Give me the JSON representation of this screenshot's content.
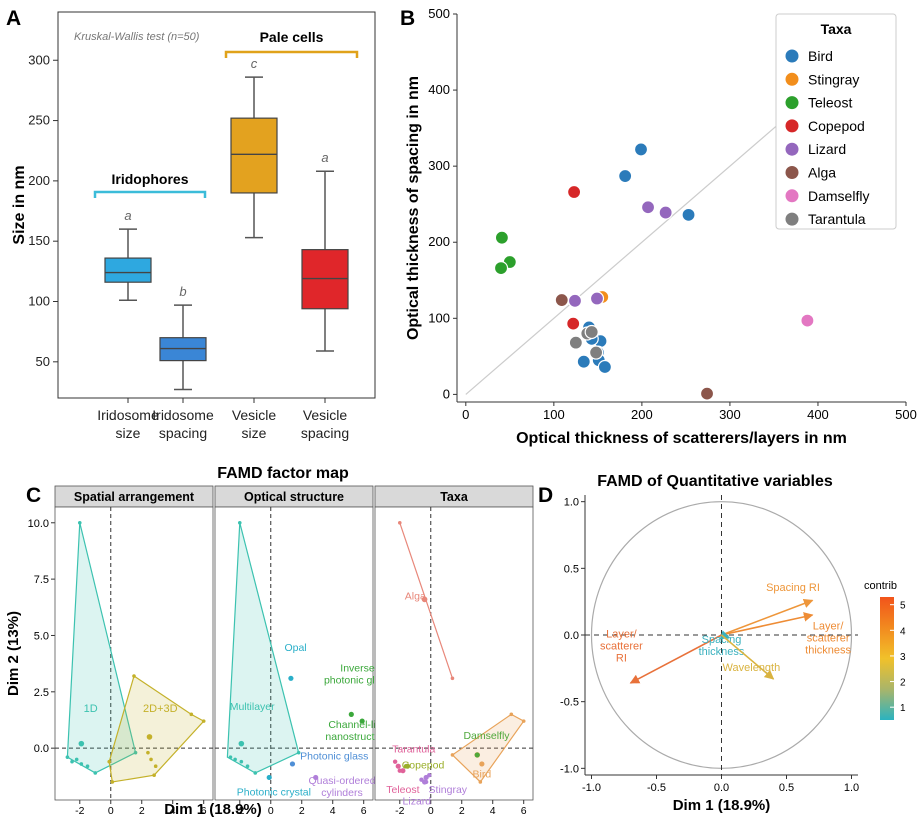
{
  "panel_letters": {
    "a": "A",
    "b": "B",
    "c": "C",
    "d": "D"
  },
  "chart_data": [
    {
      "id": "A",
      "type": "box",
      "ylabel": "Size in nm",
      "ylim": [
        20,
        340
      ],
      "yticks": [
        50,
        100,
        150,
        200,
        250,
        300
      ],
      "annotation": "Kruskal-Wallis test (n=50)",
      "groups": [
        {
          "label": "Iridophores",
          "members": [
            0,
            1
          ],
          "color": "#3BBCD9"
        },
        {
          "label": "Pale cells",
          "members": [
            2,
            3
          ],
          "color": "#E0A21A"
        }
      ],
      "boxes": [
        {
          "label": [
            "Iridosome",
            "size"
          ],
          "min": 101,
          "q1": 116,
          "median": 124,
          "q3": 136,
          "max": 160,
          "letter": "a",
          "color": "#2EA8E0"
        },
        {
          "label": [
            "Iridosome",
            "spacing"
          ],
          "min": 27,
          "q1": 51,
          "median": 61,
          "q3": 70,
          "max": 97,
          "letter": "b",
          "color": "#3A86D6"
        },
        {
          "label": [
            "Vesicle",
            "size"
          ],
          "min": 153,
          "q1": 190,
          "median": 222,
          "q3": 252,
          "max": 286,
          "letter": "c",
          "color": "#E3A21F"
        },
        {
          "label": [
            "Vesicle",
            "spacing"
          ],
          "min": 59,
          "q1": 94,
          "median": 119,
          "q3": 143,
          "max": 208,
          "letter": "a",
          "color": "#E0262A"
        }
      ]
    },
    {
      "id": "B",
      "type": "scatter",
      "xlabel": "Optical thickness of scatterers/layers in nm",
      "ylabel": "Optical thickness of spacing in nm",
      "xlim": [
        -10,
        500
      ],
      "ylim": [
        -10,
        500
      ],
      "xticks": [
        0,
        100,
        200,
        300,
        400,
        500
      ],
      "yticks": [
        0,
        100,
        200,
        300,
        400,
        500
      ],
      "legend_title": "Taxa",
      "legend_position": "top-right",
      "diagonal": true,
      "series": [
        {
          "name": "Bird",
          "color": "#2B7BBA",
          "points": [
            [
              199,
              322
            ],
            [
              181,
              287
            ],
            [
              253,
              236
            ],
            [
              140,
              88
            ],
            [
              153,
              70
            ],
            [
              143,
              73
            ],
            [
              150,
              55
            ],
            [
              151,
              45
            ],
            [
              134,
              43
            ],
            [
              158,
              36
            ]
          ]
        },
        {
          "name": "Stingray",
          "color": "#F28E1C",
          "points": [
            [
              155,
              128
            ]
          ]
        },
        {
          "name": "Teleost",
          "color": "#2CA02C",
          "points": [
            [
              41,
              206
            ],
            [
              50,
              174
            ],
            [
              40,
              166
            ]
          ]
        },
        {
          "name": "Copepod",
          "color": "#D62728",
          "points": [
            [
              123,
              266
            ],
            [
              122,
              93
            ]
          ]
        },
        {
          "name": "Lizard",
          "color": "#9467BD",
          "points": [
            [
              207,
              246
            ],
            [
              227,
              239
            ],
            [
              124,
              123
            ],
            [
              149,
              126
            ]
          ]
        },
        {
          "name": "Alga",
          "color": "#8C564B",
          "points": [
            [
              109,
              124
            ],
            [
              274,
              1
            ]
          ]
        },
        {
          "name": "Damselfly",
          "color": "#E377C2",
          "points": [
            [
              388,
              97
            ]
          ]
        },
        {
          "name": "Tarantula",
          "color": "#7F7F7F",
          "points": [
            [
              138,
              80
            ],
            [
              143,
              82
            ],
            [
              125,
              68
            ],
            [
              148,
              55
            ]
          ]
        }
      ]
    },
    {
      "id": "C",
      "type": "scatter",
      "title": "FAMD factor map",
      "xlabel": "Dim 1 (18.9%)",
      "ylabel": "Dim 2 (13%)",
      "xlim": [
        -3.6,
        6.6
      ],
      "ylim": [
        -2.3,
        10.7
      ],
      "xticks": [
        -2,
        0,
        2,
        4,
        6
      ],
      "yticks": [
        0,
        2.5,
        5,
        7.5,
        10
      ],
      "ytick_labels": [
        "0.0",
        "2.5",
        "5.0",
        "7.5",
        "10.0"
      ],
      "facets": [
        {
          "title": "Spatial arrangement",
          "groups": [
            {
              "name": "1D",
              "color": "#3CC2B0",
              "hull": [
                [
                  -2.0,
                  10.0
                ],
                [
                  1.6,
                  -0.2
                ],
                [
                  -1.0,
                  -1.1
                ],
                [
                  -2.8,
                  -0.4
                ]
              ],
              "centroid": [
                -1.9,
                0.2
              ],
              "label_pos": [
                -1.3,
                1.6
              ],
              "points": [
                [
                  -2.0,
                  10.0
                ],
                [
                  -2.8,
                  -0.4
                ],
                [
                  -2.5,
                  -0.6
                ],
                [
                  -2.2,
                  -0.5
                ],
                [
                  -1.9,
                  -0.7
                ],
                [
                  -1.5,
                  -0.8
                ],
                [
                  -1.0,
                  -1.1
                ],
                [
                  1.6,
                  -0.2
                ]
              ]
            },
            {
              "name": "2D+3D",
              "color": "#C4B12A",
              "hull": [
                [
                  1.5,
                  3.2
                ],
                [
                  5.2,
                  1.5
                ],
                [
                  6.0,
                  1.2
                ],
                [
                  2.8,
                  -1.2
                ],
                [
                  0.1,
                  -1.5
                ],
                [
                  -0.1,
                  -0.6
                ]
              ],
              "centroid": [
                2.5,
                0.5
              ],
              "label_pos": [
                3.2,
                1.6
              ],
              "points": [
                [
                  1.5,
                  3.2
                ],
                [
                  5.2,
                  1.5
                ],
                [
                  6.0,
                  1.2
                ],
                [
                  2.4,
                  -0.2
                ],
                [
                  2.6,
                  -0.5
                ],
                [
                  2.9,
                  -0.8
                ],
                [
                  2.8,
                  -1.2
                ],
                [
                  0.1,
                  -1.5
                ],
                [
                  -0.1,
                  -0.6
                ]
              ]
            }
          ]
        },
        {
          "title": "Optical structure",
          "groups": [
            {
              "name": "Multilayer",
              "color": "#3CC2B0",
              "hull": [
                [
                  -2.0,
                  10.0
                ],
                [
                  1.8,
                  -0.2
                ],
                [
                  -1.0,
                  -1.1
                ],
                [
                  -2.8,
                  -0.4
                ]
              ],
              "centroid": [
                -1.9,
                0.2
              ],
              "points": [
                [
                  -2.0,
                  10.0
                ],
                [
                  -2.6,
                  -0.4
                ],
                [
                  -2.3,
                  -0.5
                ],
                [
                  -1.9,
                  -0.6
                ],
                [
                  -1.5,
                  -0.8
                ],
                [
                  -1.0,
                  -1.1
                ],
                [
                  1.8,
                  -0.2
                ]
              ]
            }
          ],
          "labels": [
            {
              "text": [
                "Opal"
              ],
              "color": "#2AAFC9",
              "dot": [
                1.3,
                3.1
              ],
              "pos": [
                1.6,
                4.3
              ]
            },
            {
              "text": [
                "Multilayer"
              ],
              "color": "#3CC2B0",
              "dot": null,
              "pos": [
                -1.2,
                1.7
              ]
            },
            {
              "text": [
                "Inverse",
                "photonic glass"
              ],
              "color": "#3BA83B",
              "dot": [
                5.2,
                1.5
              ],
              "pos": [
                5.6,
                3.4
              ]
            },
            {
              "text": [
                "Channel-like",
                "nanostructure"
              ],
              "color": "#3BA83B",
              "dot": [
                5.9,
                1.2
              ],
              "pos": [
                5.6,
                0.9
              ]
            },
            {
              "text": [
                "Photonic glass"
              ],
              "color": "#4F8FD6",
              "dot": [
                1.4,
                -0.7
              ],
              "pos": [
                4.1,
                -0.5
              ]
            },
            {
              "text": [
                "Photonic crystal"
              ],
              "color": "#2AAFC9",
              "dot": [
                -0.1,
                -1.3
              ],
              "pos": [
                0.2,
                -2.1
              ]
            },
            {
              "text": [
                "Quasi-ordered",
                "cylinders"
              ],
              "color": "#B07FD9",
              "dot": [
                2.9,
                -1.3
              ],
              "pos": [
                4.6,
                -1.6
              ]
            }
          ]
        },
        {
          "title": "Taxa",
          "groups": [
            {
              "name": "Alga",
              "color": "#E8877A",
              "hull": [
                [
                  -2.0,
                  10.0
                ],
                [
                  1.4,
                  3.1
                ]
              ],
              "centroid": [
                -0.4,
                6.6
              ],
              "points": [
                [
                  -2.0,
                  10.0
                ],
                [
                  1.4,
                  3.1
                ]
              ]
            },
            {
              "name": "Damselfly",
              "color": "#E8A35A",
              "hull": [
                [
                  5.2,
                  1.5
                ],
                [
                  6.0,
                  1.2
                ],
                [
                  3.2,
                  -1.5
                ],
                [
                  1.4,
                  -0.3
                ]
              ],
              "centroid": [
                3.0,
                -0.3
              ],
              "points": [
                [
                  5.2,
                  1.5
                ],
                [
                  6.0,
                  1.2
                ],
                [
                  3.2,
                  -1.5
                ],
                [
                  1.4,
                  -0.3
                ]
              ]
            }
          ],
          "labels": [
            {
              "text": [
                "Alga"
              ],
              "color": "#E8877A",
              "dot": [
                -0.4,
                6.6
              ],
              "pos": [
                -1.0,
                6.6
              ]
            },
            {
              "text": [
                "Damselfly"
              ],
              "color": "#4FA83B",
              "dot": [
                3.0,
                -0.3
              ],
              "pos": [
                3.6,
                0.4
              ]
            },
            {
              "text": [
                "Bird"
              ],
              "color": "#E8A35A",
              "dot": [
                3.3,
                -0.7
              ],
              "pos": [
                3.3,
                -1.3
              ]
            },
            {
              "text": [
                "Tarantula"
              ],
              "color": "#E0629A",
              "dot": [
                -2.1,
                -0.8
              ],
              "pos": [
                -1.1,
                -0.2
              ]
            },
            {
              "text": [
                "Copepod"
              ],
              "color": "#9AAF2A",
              "dot": [
                -1.5,
                -0.8
              ],
              "pos": [
                -0.5,
                -0.9
              ]
            },
            {
              "text": [
                "Teleost"
              ],
              "color": "#E0629A",
              "dot": [
                -1.8,
                -1.0
              ],
              "pos": [
                -1.8,
                -2.0
              ]
            },
            {
              "text": [
                "Stingray"
              ],
              "color": "#B07FD9",
              "dot": [
                -0.3,
                -1.3
              ],
              "pos": [
                1.1,
                -2.0
              ]
            },
            {
              "text": [
                "Lizard"
              ],
              "color": "#B07FD9",
              "dot": [
                -0.4,
                -1.5
              ],
              "pos": [
                -0.9,
                -2.5
              ]
            }
          ],
          "points": [
            {
              "color": "#E0629A",
              "xy": [
                -2.3,
                -0.6
              ]
            },
            {
              "color": "#E0629A",
              "xy": [
                -2.0,
                -1.0
              ]
            },
            {
              "color": "#9AAF2A",
              "xy": [
                -1.6,
                -0.8
              ]
            },
            {
              "color": "#B07FD9",
              "xy": [
                -0.6,
                -1.4
              ]
            },
            {
              "color": "#B07FD9",
              "xy": [
                -0.3,
                -1.5
              ]
            },
            {
              "color": "#B07FD9",
              "xy": [
                -0.1,
                -1.2
              ]
            }
          ]
        }
      ]
    },
    {
      "id": "D",
      "type": "biplot",
      "title": "FAMD of Quantitative variables",
      "xlabel": "Dim 1 (18.9%)",
      "xlim": [
        -1.05,
        1.05
      ],
      "ylim": [
        -1.05,
        1.05
      ],
      "xticks": [
        -1.0,
        -0.5,
        0.0,
        0.5,
        1.0
      ],
      "yticks": [
        -1.0,
        -0.5,
        0.0,
        0.5,
        1.0
      ],
      "tick_labels": [
        "-1.0",
        "-0.5",
        "0.0",
        "0.5",
        "1.0"
      ],
      "legend_title": "contrib",
      "legend_ticks": [
        "1",
        "2",
        "3",
        "4",
        "5"
      ],
      "legend_range": [
        0.5,
        5.3
      ],
      "colorscale": [
        "#2BB3C0",
        "#A9B56A",
        "#F1C12A",
        "#F28A1F",
        "#F2541B"
      ],
      "arrows": [
        {
          "label": [
            "Spacing RI"
          ],
          "x": 0.7,
          "y": 0.26,
          "contrib": 3.8,
          "color": "#EE963A",
          "label_pos": [
            0.55,
            0.33
          ]
        },
        {
          "label": [
            "Layer/",
            "scatterer",
            "thickness"
          ],
          "x": 0.7,
          "y": 0.15,
          "contrib": 3.9,
          "color": "#EE8C35",
          "label_pos": [
            0.82,
            0.04
          ]
        },
        {
          "label": [
            "Layer/",
            "scatterer",
            "RI"
          ],
          "x": -0.7,
          "y": -0.36,
          "contrib": 4.6,
          "color": "#E8713A",
          "label_pos": [
            -0.77,
            -0.02
          ]
        },
        {
          "label": [
            "Spacing",
            "thickness"
          ],
          "x": 0.06,
          "y": -0.02,
          "contrib": 0.8,
          "color": "#3AB1BE",
          "label_pos": [
            0.0,
            -0.06
          ]
        },
        {
          "label": [
            "Wavelength"
          ],
          "x": 0.4,
          "y": -0.33,
          "contrib": 2.8,
          "color": "#D9B340",
          "label_pos": [
            0.23,
            -0.27
          ]
        }
      ]
    }
  ]
}
